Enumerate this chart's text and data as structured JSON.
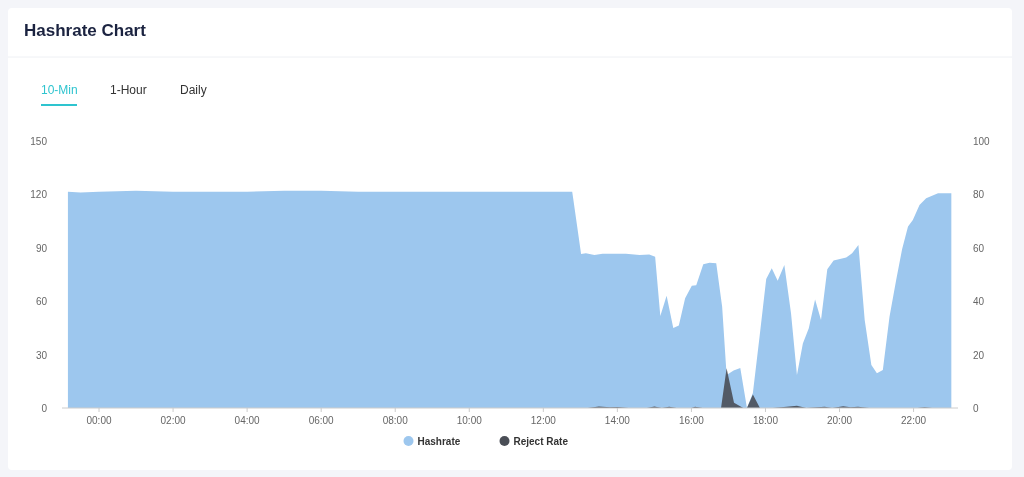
{
  "chart_data": {
    "type": "area",
    "title": "Hashrate Chart",
    "annotations": [
      "10-Min",
      "1-Hour",
      "Daily"
    ],
    "xlim": [
      -1,
      23.2
    ],
    "xticks": [
      {
        "value": 0,
        "label": "00:00"
      },
      {
        "value": 2,
        "label": "02:00"
      },
      {
        "value": 4,
        "label": "04:00"
      },
      {
        "value": 6,
        "label": "06:00"
      },
      {
        "value": 8,
        "label": "08:00"
      },
      {
        "value": 10,
        "label": "10:00"
      },
      {
        "value": 12,
        "label": "12:00"
      },
      {
        "value": 14,
        "label": "14:00"
      },
      {
        "value": 16,
        "label": "16:00"
      },
      {
        "value": 18,
        "label": "18:00"
      },
      {
        "value": 20,
        "label": "20:00"
      },
      {
        "value": 22,
        "label": "22:00"
      }
    ],
    "ylim": [
      0,
      150
    ],
    "yticks": [
      0,
      30,
      60,
      90,
      120,
      150
    ],
    "y2lim": [
      0,
      100
    ],
    "y2ticks": [
      0,
      20,
      40,
      60,
      80,
      100
    ],
    "legend": "bottom",
    "grid": false,
    "series": [
      {
        "name": "Hashrate",
        "color": "#9dc7ee",
        "x": [
          -0.84,
          -0.5,
          0,
          1,
          2,
          3,
          4,
          5,
          6,
          7,
          8,
          9,
          10,
          11,
          12,
          12.5,
          12.78,
          12.8,
          13.02,
          13.15,
          13.38,
          13.6,
          14.23,
          14.6,
          14.86,
          15.02,
          15.16,
          15.33,
          15.51,
          15.66,
          15.83,
          16.01,
          16.13,
          16.32,
          16.49,
          16.67,
          16.83,
          16.95,
          17.14,
          17.32,
          17.5,
          17.66,
          17.84,
          18.02,
          18.17,
          18.33,
          18.51,
          18.69,
          18.85,
          19.01,
          19.17,
          19.34,
          19.5,
          19.67,
          19.84,
          20.18,
          20.34,
          20.51,
          20.68,
          20.86,
          21.01,
          21.17,
          21.35,
          21.53,
          21.69,
          21.85,
          21.98,
          22.16,
          22.34,
          22.66,
          23.02
        ],
        "values": [
          121.5,
          121,
          121.5,
          122,
          121.5,
          121.5,
          121.5,
          122,
          122,
          121.5,
          121.5,
          121.5,
          121.5,
          121.5,
          121.5,
          121.5,
          121.5,
          118.7,
          86.5,
          87,
          86,
          86.7,
          86.7,
          86,
          86.3,
          85,
          51.7,
          63,
          45,
          46.3,
          61.6,
          68.7,
          68.9,
          80.7,
          81.6,
          81.3,
          56.9,
          18.5,
          21,
          22.5,
          0,
          8.4,
          40,
          72.5,
          78.5,
          71.5,
          80.3,
          53.2,
          18.5,
          36.3,
          44.8,
          61,
          49.4,
          77.9,
          82.8,
          84.5,
          86.9,
          91.6,
          49.4,
          24.2,
          19.5,
          21.3,
          51.3,
          71.9,
          89.2,
          101.9,
          105.6,
          114,
          117.8,
          120.6,
          120.6
        ]
      },
      {
        "name": "Reject Rate",
        "color": "#4a4e56",
        "axis": "y2",
        "x": [
          -0.84,
          13.2,
          13.5,
          13.8,
          14.0,
          14.3,
          14.8,
          15.0,
          15.2,
          15.4,
          15.6,
          16.0,
          16.1,
          16.3,
          16.8,
          16.95,
          17.15,
          17.4,
          17.5,
          17.66,
          17.85,
          18.2,
          18.5,
          18.85,
          19.1,
          19.6,
          19.8,
          20.1,
          20.3,
          20.5,
          20.8,
          22.1,
          22.3,
          22.5,
          23.02
        ],
        "values": [
          0,
          0,
          0.6,
          0.3,
          0.4,
          0,
          0,
          0.6,
          0,
          0.5,
          0,
          0,
          0.5,
          0,
          0,
          14.9,
          2,
          0,
          0,
          5.1,
          0,
          0,
          0.4,
          0.8,
          0,
          0.5,
          0,
          0.7,
          0.3,
          0.5,
          0,
          0,
          0.3,
          0,
          0
        ]
      }
    ]
  }
}
